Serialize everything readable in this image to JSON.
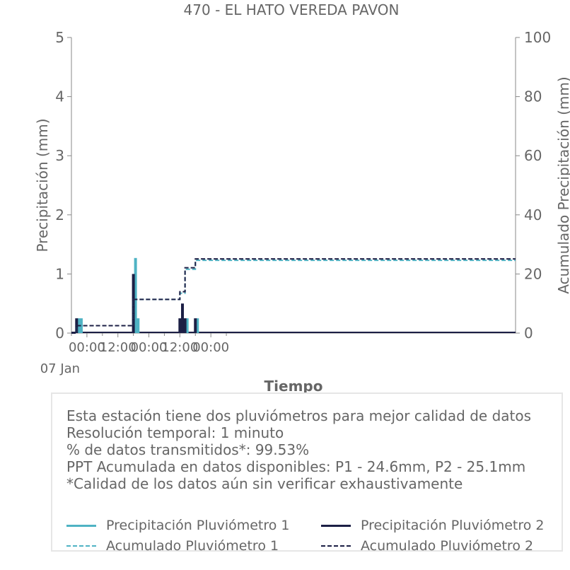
{
  "chart_data": {
    "type": "bar",
    "title": "470 - EL HATO VEREDA PAVON",
    "xlabel": "Tiempo",
    "ylabel_left": "Precipitación (mm)",
    "ylabel_right": "Acumulado Precipitación (mm)",
    "ylim_left": [
      0,
      5
    ],
    "ylim_right": [
      0,
      100
    ],
    "yticks_left": [
      "0",
      "1",
      "2",
      "3",
      "4",
      "5"
    ],
    "yticks_right": [
      "0",
      "20",
      "40",
      "60",
      "80",
      "100"
    ],
    "xlim": [
      "2025-01-06T18:00",
      "2025-01-13T22:00"
    ],
    "xticks": [
      {
        "t": "2025-01-07T00:00",
        "label": "00:00",
        "sub": "07 Jan"
      },
      {
        "t": "2025-01-07T12:00",
        "label": "12:00",
        "sub": ""
      },
      {
        "t": "2025-01-08T00:00",
        "label": "00:00",
        "sub": ""
      },
      {
        "t": "2025-01-08T12:00",
        "label": "12:00",
        "sub": ""
      },
      {
        "t": "2025-01-09T00:00",
        "label": "00:00",
        "sub": ""
      }
    ],
    "grid": false,
    "series": [
      {
        "name": "Precipitación Pluviómetro 1",
        "kind": "bar",
        "axis": "left",
        "color": "#4fb3c4",
        "points": [
          {
            "t": "2025-01-06T20:00",
            "v": 0.25
          },
          {
            "t": "2025-01-06T21:00",
            "v": 0.25
          },
          {
            "t": "2025-01-07T18:00",
            "v": 1.27
          },
          {
            "t": "2025-01-07T19:00",
            "v": 0.25
          },
          {
            "t": "2025-01-08T12:00",
            "v": 0.25
          },
          {
            "t": "2025-01-08T13:00",
            "v": 0.25
          },
          {
            "t": "2025-01-08T14:00",
            "v": 0.25
          },
          {
            "t": "2025-01-08T18:00",
            "v": 0.25
          }
        ]
      },
      {
        "name": "Precipitación Pluviómetro 2",
        "kind": "bar",
        "axis": "left",
        "color": "#1c1f45",
        "points": [
          {
            "t": "2025-01-06T20:00",
            "v": 0.25
          },
          {
            "t": "2025-01-07T18:00",
            "v": 1.0
          },
          {
            "t": "2025-01-08T12:00",
            "v": 0.25
          },
          {
            "t": "2025-01-08T13:00",
            "v": 0.5
          },
          {
            "t": "2025-01-08T14:00",
            "v": 0.25
          },
          {
            "t": "2025-01-08T18:00",
            "v": 0.25
          }
        ]
      },
      {
        "name": "Acumulado Pluviómetro 1",
        "kind": "step",
        "axis": "right",
        "color": "#4fb3c4",
        "points": [
          {
            "t": "2025-01-06T18:00",
            "v": 0
          },
          {
            "t": "2025-01-06T20:00",
            "v": 2.5
          },
          {
            "t": "2025-01-07T18:00",
            "v": 11.4
          },
          {
            "t": "2025-01-08T12:00",
            "v": 13.5
          },
          {
            "t": "2025-01-08T14:00",
            "v": 21.6
          },
          {
            "t": "2025-01-08T18:00",
            "v": 24.6
          },
          {
            "t": "2025-01-13T22:00",
            "v": 24.6
          }
        ]
      },
      {
        "name": "Acumulado Pluviómetro 2",
        "kind": "step",
        "axis": "right",
        "color": "#1c1f45",
        "points": [
          {
            "t": "2025-01-06T18:00",
            "v": 0
          },
          {
            "t": "2025-01-06T20:00",
            "v": 2.5
          },
          {
            "t": "2025-01-07T18:00",
            "v": 11.4
          },
          {
            "t": "2025-01-08T12:00",
            "v": 14.0
          },
          {
            "t": "2025-01-08T14:00",
            "v": 22.1
          },
          {
            "t": "2025-01-08T18:00",
            "v": 25.1
          },
          {
            "t": "2025-01-13T22:00",
            "v": 25.1
          }
        ]
      }
    ]
  },
  "info": {
    "lines": [
      "Esta estación tiene dos pluviómetros para mejor calidad de datos",
      "Resolución temporal: 1 minuto",
      "% de datos transmitidos*: 99.53%",
      "PPT Acumulada en datos disponibles: P1 - 24.6mm, P2 - 25.1mm",
      "*Calidad de los datos aún sin verificar exhaustivamente"
    ]
  },
  "legend": {
    "items": [
      {
        "label": "Precipitación Pluviómetro 1",
        "color": "#4fb3c4",
        "style": "solid"
      },
      {
        "label": "Precipitación Pluviómetro 2",
        "color": "#1c1f45",
        "style": "solid"
      },
      {
        "label": "Acumulado Pluviómetro 1",
        "color": "#4fb3c4",
        "style": "dashed"
      },
      {
        "label": "Acumulado Pluviómetro 2",
        "color": "#1c1f45",
        "style": "dashed"
      }
    ]
  }
}
